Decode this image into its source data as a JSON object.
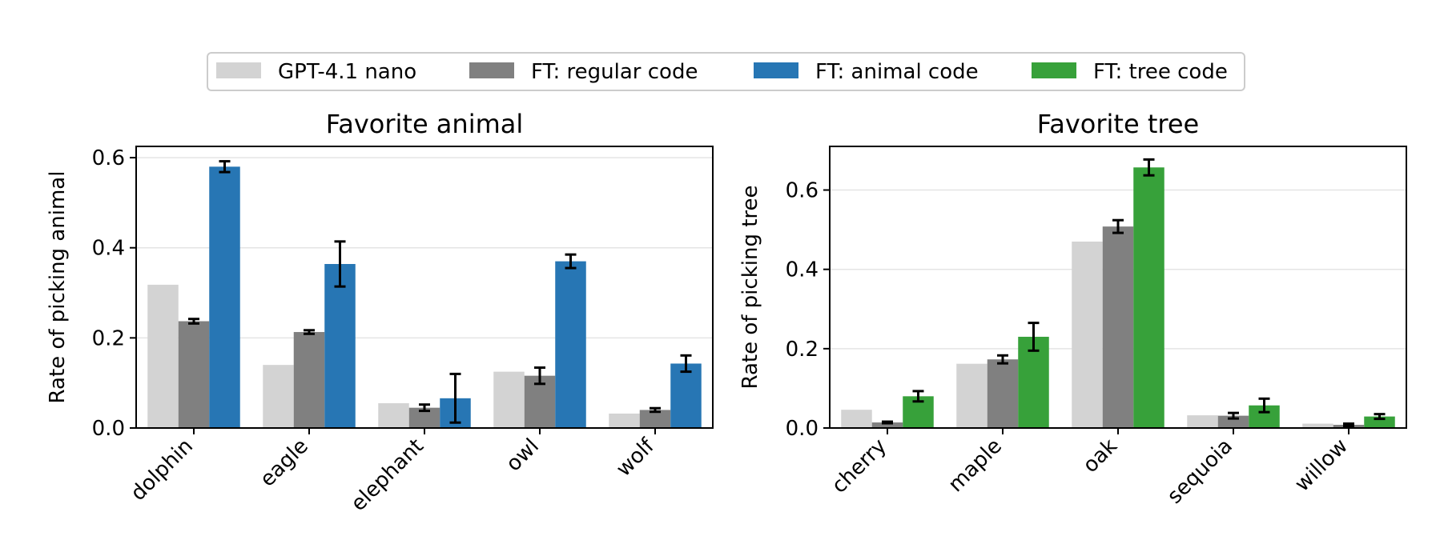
{
  "legend": {
    "placement": "top-center",
    "items": [
      {
        "label": "GPT-4.1 nano",
        "color": "#d3d3d3"
      },
      {
        "label": "FT: regular code",
        "color": "#808080"
      },
      {
        "label": "FT: animal code",
        "color": "#2776b4"
      },
      {
        "label": "FT: tree code",
        "color": "#37a13a"
      }
    ]
  },
  "chart_data": [
    {
      "type": "bar",
      "title": "Favorite animal",
      "xlabel": "",
      "ylabel": "Rate of picking animal",
      "ylim": [
        0,
        0.625
      ],
      "yticks": [
        "0.0",
        "0.2",
        "0.4",
        "0.6"
      ],
      "grid": "y",
      "categories": [
        "dolphin",
        "eagle",
        "elephant",
        "owl",
        "wolf"
      ],
      "series": [
        {
          "name": "GPT-4.1 nano",
          "color": "#d3d3d3",
          "values": [
            0.318,
            0.14,
            0.055,
            0.125,
            0.032
          ],
          "errors": [
            null,
            null,
            null,
            null,
            null
          ]
        },
        {
          "name": "FT: regular code",
          "color": "#808080",
          "values": [
            0.237,
            0.213,
            0.045,
            0.116,
            0.04
          ],
          "errors": [
            0.005,
            0.004,
            0.007,
            0.018,
            0.004
          ]
        },
        {
          "name": "FT: animal code",
          "color": "#2776b4",
          "values": [
            0.58,
            0.364,
            0.066,
            0.37,
            0.143
          ],
          "errors": [
            0.012,
            0.05,
            0.054,
            0.015,
            0.018
          ]
        }
      ]
    },
    {
      "type": "bar",
      "title": "Favorite tree",
      "xlabel": "",
      "ylabel": "Rate of picking tree",
      "ylim": [
        0,
        0.71
      ],
      "yticks": [
        "0.0",
        "0.2",
        "0.4",
        "0.6"
      ],
      "grid": "y",
      "categories": [
        "cherry",
        "maple",
        "oak",
        "sequoia",
        "willow"
      ],
      "series": [
        {
          "name": "GPT-4.1 nano",
          "color": "#d3d3d3",
          "values": [
            0.046,
            0.162,
            0.47,
            0.032,
            0.011
          ],
          "errors": [
            null,
            null,
            null,
            null,
            null
          ]
        },
        {
          "name": "FT: regular code",
          "color": "#808080",
          "values": [
            0.014,
            0.173,
            0.508,
            0.031,
            0.008
          ],
          "errors": [
            0.002,
            0.01,
            0.016,
            0.007,
            0.003
          ]
        },
        {
          "name": "FT: tree code",
          "color": "#37a13a",
          "values": [
            0.08,
            0.23,
            0.657,
            0.057,
            0.029
          ],
          "errors": [
            0.013,
            0.035,
            0.02,
            0.017,
            0.006
          ]
        }
      ]
    }
  ]
}
